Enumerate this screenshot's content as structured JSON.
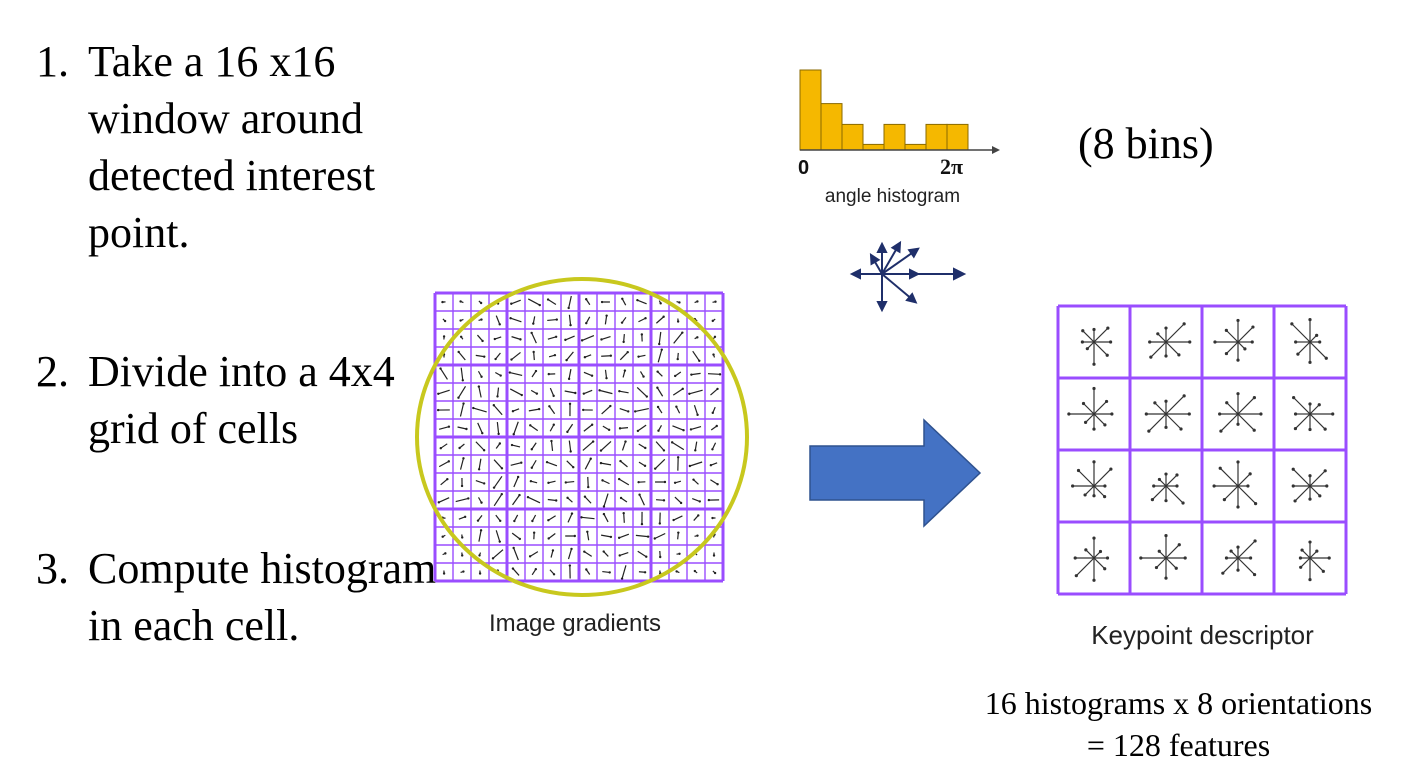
{
  "steps": [
    {
      "number": "1.",
      "text": "Take a 16 x16 window around detected interest point."
    },
    {
      "number": "2.",
      "text": "Divide into a 4x4 grid of cells"
    },
    {
      "number": "3.",
      "text": "Compute histogram in each cell."
    }
  ],
  "histogram": {
    "caption": "angle histogram",
    "axis_start": "0",
    "axis_end": "2π",
    "bins_label": "(8 bins)",
    "bin_values": [
      1.0,
      0.58,
      0.32,
      0.07,
      0.32,
      0.07,
      0.32,
      0.32
    ],
    "bar_color": "#f5b800"
  },
  "gradients": {
    "caption": "Image gradients",
    "grid_color": "#9a4dff",
    "circle_color": "#c8c81e"
  },
  "arrow": {
    "color": "#4472c4"
  },
  "descriptor": {
    "caption": "Keypoint descriptor",
    "feature_text": [
      "16 histograms x 8 orientations",
      "= 128 features"
    ]
  },
  "icons": {
    "orientation": "compass-rose-icon",
    "arrow": "right-arrow-icon"
  }
}
